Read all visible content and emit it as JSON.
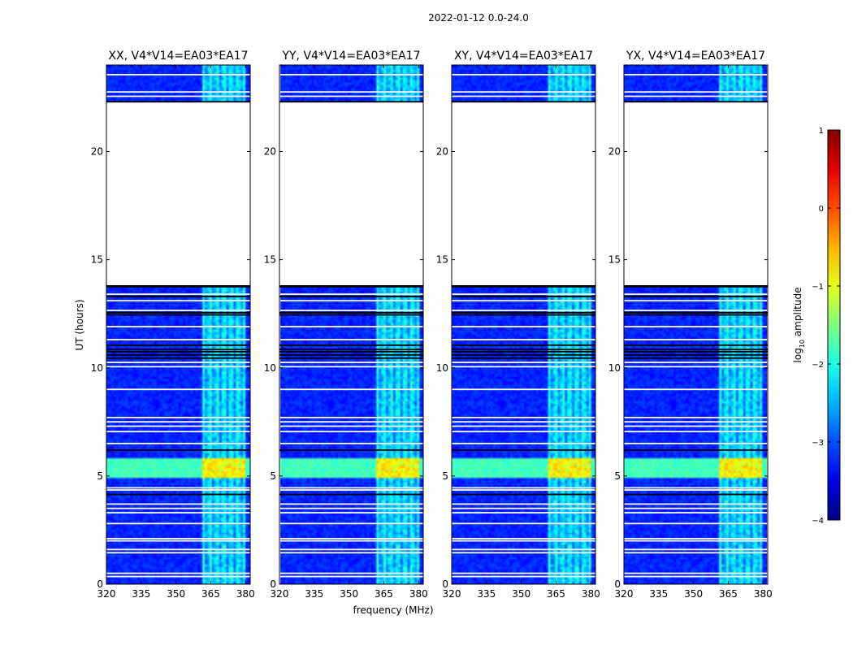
{
  "figure": {
    "suptitle": "2022-01-12 0.0-24.0",
    "xlabel": "frequency (MHz)",
    "ylabel": "UT (hours)"
  },
  "colorbar": {
    "label_prefix": "log",
    "label_sub": "10",
    "label_suffix": " amplitude",
    "ticks": [
      1,
      0,
      -1,
      -2,
      -3,
      -4
    ],
    "tick_labels": [
      "1",
      "0",
      "−1",
      "−2",
      "−3",
      "−4"
    ],
    "range": [
      -4,
      1
    ],
    "colormap": "jet"
  },
  "chart_data": {
    "type": "heatmap",
    "x_range_mhz": [
      320,
      382
    ],
    "x_ticks": [
      320,
      335,
      350,
      365,
      380
    ],
    "y_range_hours": [
      0,
      24
    ],
    "y_ticks": [
      0,
      5,
      10,
      15,
      20
    ],
    "rfi_band_mhz": [
      361,
      380
    ],
    "rfi_peak_hours": [
      4.9,
      5.8
    ],
    "no_data_hours": [
      [
        13.8,
        22.3
      ]
    ],
    "flag_gap_hours": [
      0.35,
      0.5,
      1.45,
      1.6,
      2.0,
      2.1,
      2.8,
      3.3,
      3.5,
      3.7,
      4.35,
      4.45,
      6.5,
      7.05,
      7.3,
      7.5,
      7.7,
      9.0,
      10.05,
      10.25,
      11.3,
      11.9,
      12.65,
      13.1,
      13.4,
      22.55,
      22.75,
      23.55
    ],
    "black_line_hours": [
      4.15,
      6.2,
      10.45,
      10.6,
      10.75,
      10.85,
      11.05,
      12.45,
      12.55,
      13.3,
      13.75,
      22.3
    ],
    "panels": [
      {
        "title": "XX, V4*V14=EA03*EA17",
        "stripe_offset_mhz": 0
      },
      {
        "title": "YY, V4*V14=EA03*EA17",
        "stripe_offset_mhz": 0.4
      },
      {
        "title": "XY, V4*V14=EA03*EA17",
        "stripe_offset_mhz": 0.2
      },
      {
        "title": "YX, V4*V14=EA03*EA17",
        "stripe_offset_mhz": -0.3
      }
    ]
  }
}
